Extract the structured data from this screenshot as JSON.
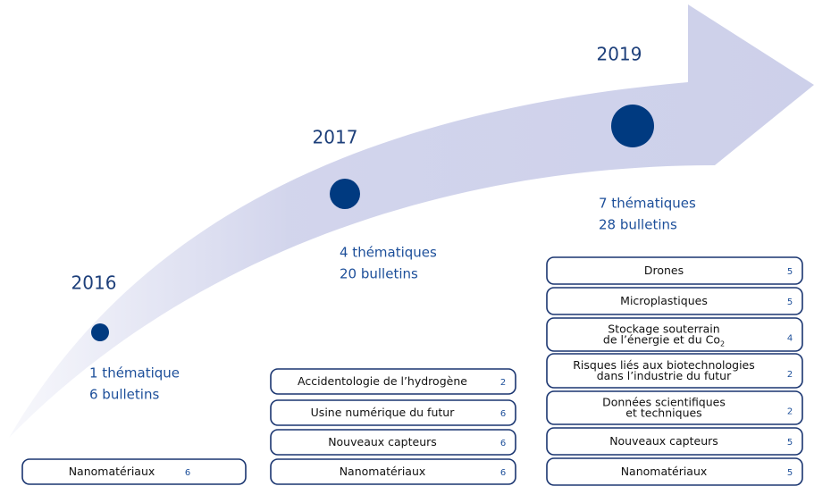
{
  "milestones": [
    {
      "year": "2016",
      "lines": [
        "1 thématique",
        "6 bulletins"
      ]
    },
    {
      "year": "2017",
      "lines": [
        "4 thématiques",
        "20 bulletins"
      ]
    },
    {
      "year": "2019",
      "lines": [
        "7 thématiques",
        "28 bulletins"
      ]
    }
  ],
  "columns": [
    {
      "topics": [
        {
          "name": [
            "Nanomatériaux"
          ],
          "count": 6
        }
      ]
    },
    {
      "topics": [
        {
          "name": [
            "Accidentologie de l’hydrogène"
          ],
          "count": 2
        },
        {
          "name": [
            "Usine numérique du futur"
          ],
          "count": 6
        },
        {
          "name": [
            "Nouveaux capteurs"
          ],
          "count": 6
        },
        {
          "name": [
            "Nanomatériaux"
          ],
          "count": 6
        }
      ]
    },
    {
      "topics": [
        {
          "name": [
            "Drones"
          ],
          "count": 5
        },
        {
          "name": [
            "Microplastiques"
          ],
          "count": 5
        },
        {
          "name": [
            "Stockage souterrain",
            "de l’énergie et du Co"
          ],
          "sub": "2",
          "count": 4
        },
        {
          "name": [
            "Risques liés aux biotechnologies",
            "dans l’industrie du futur"
          ],
          "count": 2
        },
        {
          "name": [
            "Données scientifiques",
            "et techniques"
          ],
          "count": 2
        },
        {
          "name": [
            "Nouveaux capteurs"
          ],
          "count": 5
        },
        {
          "name": [
            "Nanomatériaux"
          ],
          "count": 5
        }
      ]
    }
  ]
}
